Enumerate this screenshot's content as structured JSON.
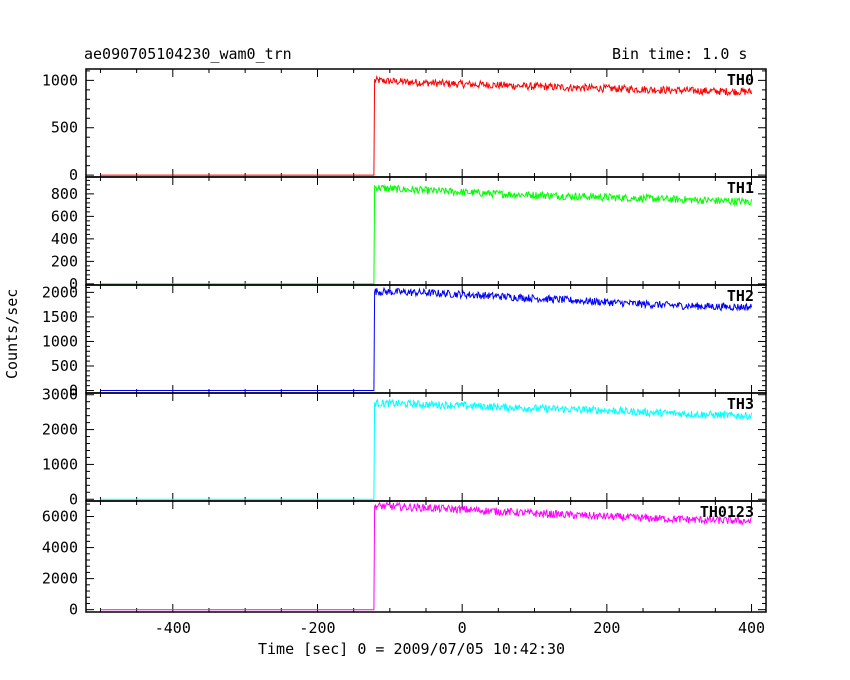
{
  "chart_data": {
    "type": "line",
    "title": "ae090705104230_wam0_trn",
    "subtitle": "Bin time: 1.0 s",
    "xlabel": "Time [sec] 0 = 2009/07/05 10:42:30",
    "ylabel": "Counts/sec",
    "xlim": [
      -520,
      420
    ],
    "x_ticks": [
      -400,
      -200,
      0,
      200,
      400
    ],
    "grid": false,
    "panels": [
      {
        "name": "TH0",
        "color": "#ff0000",
        "ylim": [
          -20,
          1120
        ],
        "y_ticks": [
          0,
          500,
          1000
        ],
        "x": [
          -500,
          -122,
          -121,
          -100,
          -50,
          0,
          50,
          100,
          150,
          200,
          250,
          300,
          350,
          400
        ],
        "y": [
          0,
          0,
          1000,
          990,
          975,
          960,
          950,
          935,
          925,
          915,
          905,
          895,
          885,
          880
        ]
      },
      {
        "name": "TH1",
        "color": "#00ff00",
        "ylim": [
          -10,
          950
        ],
        "y_ticks": [
          0,
          200,
          400,
          600,
          800
        ],
        "x": [
          -500,
          -122,
          -121,
          -100,
          -50,
          0,
          50,
          100,
          150,
          200,
          250,
          300,
          350,
          400
        ],
        "y": [
          0,
          0,
          860,
          845,
          830,
          815,
          800,
          790,
          780,
          770,
          760,
          750,
          740,
          730
        ]
      },
      {
        "name": "TH2",
        "color": "#0000ff",
        "ylim": [
          -50,
          2150
        ],
        "y_ticks": [
          0,
          500,
          1000,
          1500,
          2000
        ],
        "x": [
          -500,
          -122,
          -121,
          -100,
          -50,
          0,
          50,
          100,
          150,
          200,
          250,
          300,
          350,
          400
        ],
        "y": [
          0,
          0,
          2020,
          2010,
          1990,
          1960,
          1920,
          1880,
          1840,
          1800,
          1760,
          1730,
          1710,
          1700
        ]
      },
      {
        "name": "TH3",
        "color": "#00ffff",
        "ylim": [
          -50,
          3050
        ],
        "y_ticks": [
          0,
          1000,
          2000,
          3000
        ],
        "x": [
          -500,
          -122,
          -121,
          -100,
          -50,
          0,
          50,
          100,
          150,
          200,
          250,
          300,
          350,
          400
        ],
        "y": [
          0,
          0,
          2760,
          2750,
          2720,
          2690,
          2650,
          2610,
          2580,
          2550,
          2500,
          2460,
          2420,
          2390
        ]
      },
      {
        "name": "TH0123",
        "color": "#ff00ff",
        "ylim": [
          -150,
          7000
        ],
        "y_ticks": [
          0,
          2000,
          4000,
          6000
        ],
        "x": [
          -500,
          -122,
          -121,
          -100,
          -50,
          0,
          50,
          100,
          150,
          200,
          250,
          300,
          350,
          400
        ],
        "y": [
          0,
          0,
          6680,
          6650,
          6560,
          6450,
          6330,
          6200,
          6100,
          6000,
          5900,
          5830,
          5760,
          5700
        ]
      }
    ]
  }
}
